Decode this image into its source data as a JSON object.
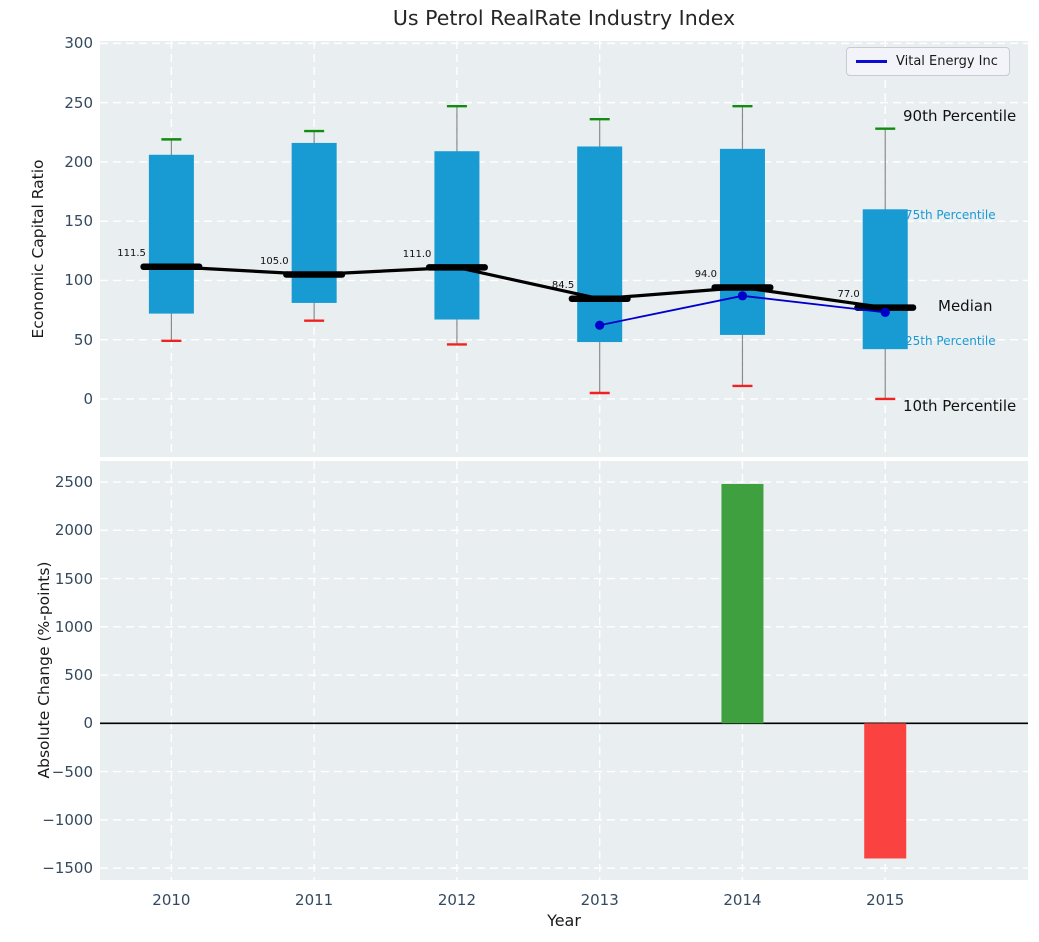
{
  "figure": {
    "title": "Us Petrol RealRate Industry Index"
  },
  "legend": {
    "label": "Vital Energy Inc",
    "line_color": "#0b0bd6",
    "position": "upper right"
  },
  "annotations": {
    "p90": "90th Percentile",
    "p75": "75th Percentile",
    "median": "Median",
    "p25": "25th Percentile",
    "p10": "10th Percentile"
  },
  "colors": {
    "axes_background": "#e9eef0",
    "grid": "#ffffff",
    "box_fill": "#189ad3",
    "whisker": "#8a8a8a",
    "cap_high": "#118b11",
    "cap_low": "#ee2222",
    "median": "#000000",
    "company_line": "#0000cc",
    "bar_positive": "#3ea03e",
    "bar_negative": "#fa4240",
    "tick_label": "#35495e",
    "percentile_label_accent": "#1a9ad6"
  },
  "chart_data": [
    {
      "type": "box",
      "title": "Us Petrol RealRate Industry Index",
      "ylabel": "Economic Capital Ratio",
      "categories": [
        "2010",
        "2011",
        "2012",
        "2013",
        "2014",
        "2015"
      ],
      "years": [
        2010,
        2011,
        2012,
        2013,
        2014,
        2015
      ],
      "xlim": [
        2009.5,
        2016.0
      ],
      "ylim": [
        -49,
        302
      ],
      "yticks": [
        0,
        50,
        100,
        150,
        200,
        250,
        300
      ],
      "grid": "white-dashed",
      "legend_position": "upper right",
      "boxes": [
        {
          "year": 2010,
          "p10": 49,
          "p25": 72,
          "median": 111.5,
          "p75": 206,
          "p90": 219
        },
        {
          "year": 2011,
          "p10": 66,
          "p25": 81,
          "median": 105.0,
          "p75": 216,
          "p90": 226
        },
        {
          "year": 2012,
          "p10": 46,
          "p25": 67,
          "median": 111.0,
          "p75": 209,
          "p90": 247
        },
        {
          "year": 2013,
          "p10": 5,
          "p25": 48,
          "median": 84.5,
          "p75": 213,
          "p90": 236
        },
        {
          "year": 2014,
          "p10": 11,
          "p25": 54,
          "median": 94.0,
          "p75": 211,
          "p90": 247
        },
        {
          "year": 2015,
          "p10": 0,
          "p25": 42,
          "median": 77.0,
          "p75": 160,
          "p90": 228
        }
      ],
      "median_values": [
        111.5,
        105.0,
        111.0,
        84.5,
        94.0,
        77.0
      ],
      "series": [
        {
          "name": "Vital Energy Inc",
          "color": "#0000cc",
          "points": [
            {
              "year": 2013,
              "value": 62.2
            },
            {
              "year": 2014,
              "value": 87.0
            },
            {
              "year": 2015,
              "value": 73.0
            }
          ]
        }
      ]
    },
    {
      "type": "bar",
      "ylabel": "Absolute Change (%-points)",
      "xlabel": "Year",
      "categories": [
        "2010",
        "2011",
        "2012",
        "2013",
        "2014",
        "2015"
      ],
      "years": [
        2010,
        2011,
        2012,
        2013,
        2014,
        2015
      ],
      "xlim": [
        2009.5,
        2016.0
      ],
      "ylim": [
        -1623,
        2718
      ],
      "yticks": [
        2500,
        2000,
        1500,
        1000,
        500,
        0,
        -500,
        -1000,
        -1500
      ],
      "grid": "white-dashed",
      "zero_line": true,
      "bars": [
        {
          "year": 2014,
          "value": 2480
        },
        {
          "year": 2015,
          "value": -1400
        }
      ]
    }
  ]
}
